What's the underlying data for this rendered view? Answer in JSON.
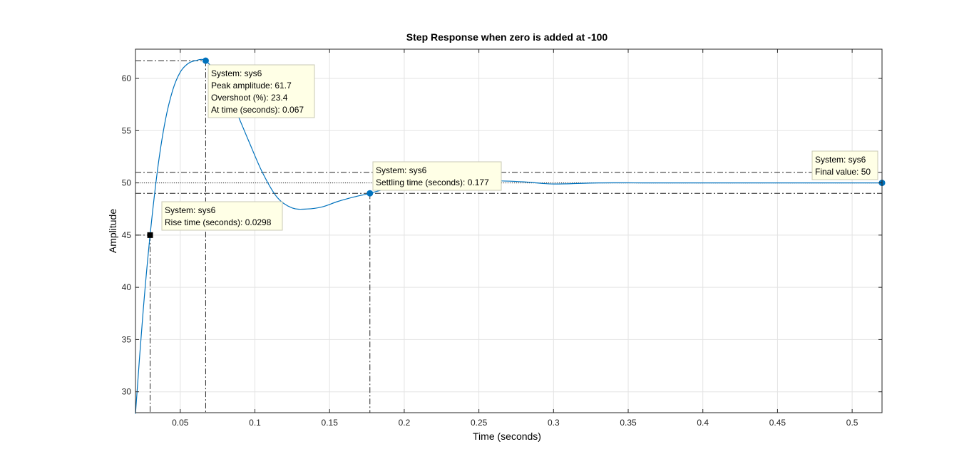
{
  "chart_data": {
    "type": "line",
    "title": "Step Response when zero is added at -100",
    "xlabel": "Time (seconds)",
    "ylabel": "Amplitude",
    "xlim": [
      0.02,
      0.52
    ],
    "ylim": [
      28,
      62.8
    ],
    "grid": true,
    "x_ticks": [
      0.05,
      0.1,
      0.15,
      0.2,
      0.25,
      0.3,
      0.35,
      0.4,
      0.45,
      0.5
    ],
    "x_tick_labels": [
      "0.05",
      "0.1",
      "0.15",
      "0.2",
      "0.25",
      "0.3",
      "0.35",
      "0.4",
      "0.45",
      "0.5"
    ],
    "y_ticks": [
      30,
      35,
      40,
      45,
      50,
      55,
      60
    ],
    "y_tick_labels": [
      "30",
      "35",
      "40",
      "45",
      "50",
      "55",
      "60"
    ],
    "series": [
      {
        "name": "sys6",
        "color": "#0072BD",
        "x": [
          0.02,
          0.025,
          0.0298,
          0.035,
          0.04,
          0.045,
          0.05,
          0.055,
          0.06,
          0.067,
          0.075,
          0.085,
          0.095,
          0.105,
          0.115,
          0.125,
          0.135,
          0.145,
          0.155,
          0.165,
          0.177,
          0.19,
          0.205,
          0.22,
          0.24,
          0.26,
          0.28,
          0.3,
          0.33,
          0.36,
          0.4,
          0.45,
          0.52
        ],
        "y": [
          27.9,
          37.5,
          45.0,
          51.5,
          56.0,
          58.9,
          60.6,
          61.4,
          61.7,
          61.7,
          60.2,
          57.6,
          54.3,
          51.0,
          48.6,
          47.6,
          47.5,
          47.7,
          48.2,
          48.6,
          49.0,
          49.5,
          49.8,
          50.0,
          50.1,
          50.2,
          50.1,
          49.9,
          50.0,
          50.0,
          50.0,
          50.0,
          50.0
        ]
      }
    ],
    "settling_band": [
      49.0,
      51.0
    ],
    "final_value_line": 50,
    "markers": [
      {
        "kind": "rise-time",
        "x": 0.0298,
        "y": 45.0,
        "shape": "square",
        "color": "#000000"
      },
      {
        "kind": "peak",
        "x": 0.067,
        "y": 61.7,
        "shape": "circle",
        "color": "#0072BD"
      },
      {
        "kind": "settling-time",
        "x": 0.177,
        "y": 49.0,
        "shape": "circle",
        "color": "#0072BD"
      },
      {
        "kind": "final-value",
        "x": 0.52,
        "y": 50.0,
        "shape": "circle",
        "color": "#0072BD"
      }
    ],
    "datatips": [
      {
        "id": "peak",
        "anchor_x": 0.067,
        "anchor_y": 61.7,
        "lines": [
          "System: sys6",
          "Peak amplitude: 61.7",
          "Overshoot (%): 23.4",
          "At time (seconds): 0.067"
        ]
      },
      {
        "id": "rise",
        "anchor_x": 0.0298,
        "anchor_y": 45.0,
        "lines": [
          "System: sys6",
          "Rise time (seconds): 0.0298"
        ]
      },
      {
        "id": "settling",
        "anchor_x": 0.177,
        "anchor_y": 49.0,
        "lines": [
          "System: sys6",
          "Settling time (seconds): 0.177"
        ]
      },
      {
        "id": "final",
        "anchor_x": 0.52,
        "anchor_y": 50.0,
        "lines": [
          "System: sys6",
          "Final value: 50"
        ]
      }
    ]
  }
}
